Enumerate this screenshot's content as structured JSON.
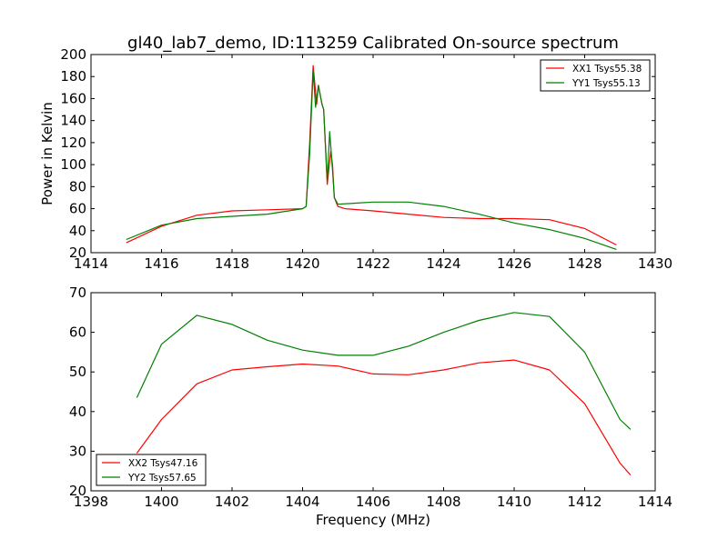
{
  "chart_data": [
    {
      "type": "line",
      "title": "gl40_lab7_demo, ID:113259 Calibrated On-source spectrum",
      "xlabel": "",
      "ylabel": "Power in Kelvin",
      "xlim": [
        1414,
        1430
      ],
      "ylim": [
        20,
        200
      ],
      "xticks": [
        1414,
        1416,
        1418,
        1420,
        1422,
        1424,
        1426,
        1428,
        1430
      ],
      "yticks": [
        20,
        40,
        60,
        80,
        100,
        120,
        140,
        160,
        180,
        200
      ],
      "legend": "top-right",
      "series": [
        {
          "name": "XX1 Tsys55.38",
          "color": "#ff0000",
          "x": [
            1415,
            1416,
            1417,
            1418,
            1419,
            1420,
            1420.1,
            1420.2,
            1420.3,
            1420.4,
            1420.45,
            1420.55,
            1420.6,
            1420.7,
            1420.8,
            1420.85,
            1420.9,
            1421,
            1421.2,
            1422,
            1423,
            1424,
            1425,
            1426,
            1427,
            1428,
            1428.9
          ],
          "y": [
            29,
            44,
            54,
            58,
            59,
            60,
            62,
            120,
            190,
            155,
            172,
            155,
            150,
            82,
            112,
            100,
            70,
            62,
            60,
            58,
            55,
            52,
            51,
            51,
            50,
            42,
            27
          ]
        },
        {
          "name": "YY1 Tsys55.13",
          "color": "#008000",
          "x": [
            1415,
            1416,
            1417,
            1418,
            1419,
            1420,
            1420.1,
            1420.2,
            1420.3,
            1420.37,
            1420.45,
            1420.55,
            1420.6,
            1420.7,
            1420.77,
            1420.85,
            1420.9,
            1421,
            1421.5,
            1422,
            1423,
            1424,
            1425,
            1426,
            1427,
            1428,
            1428.9
          ],
          "y": [
            32,
            45,
            51,
            53,
            55,
            60,
            62,
            110,
            185,
            152,
            172,
            155,
            150,
            85,
            130,
            95,
            70,
            64,
            65,
            66,
            66,
            62,
            55,
            47,
            41,
            33,
            23
          ]
        }
      ]
    },
    {
      "type": "line",
      "title": "",
      "xlabel": "Frequency (MHz)",
      "ylabel": "",
      "xlim": [
        1398,
        1414
      ],
      "ylim": [
        20,
        70
      ],
      "xticks": [
        1398,
        1400,
        1402,
        1404,
        1406,
        1408,
        1410,
        1412,
        1414
      ],
      "yticks": [
        20,
        30,
        40,
        50,
        60,
        70
      ],
      "legend": "bottom-left",
      "series": [
        {
          "name": "XX2 Tsys47.16",
          "color": "#ff0000",
          "x": [
            1399.3,
            1400,
            1401,
            1402,
            1403,
            1404,
            1405,
            1406,
            1407,
            1408,
            1409,
            1410,
            1411,
            1412,
            1413,
            1413.3
          ],
          "y": [
            29.5,
            38,
            47,
            50.5,
            51.3,
            52,
            51.5,
            49.5,
            49.3,
            50.5,
            52.3,
            53,
            50.5,
            42,
            27,
            24
          ]
        },
        {
          "name": "YY2 Tsys57.65",
          "color": "#008000",
          "x": [
            1399.3,
            1400,
            1401,
            1402,
            1403,
            1404,
            1405,
            1406,
            1407,
            1408,
            1409,
            1410,
            1411,
            1412,
            1413,
            1413.3
          ],
          "y": [
            43.5,
            57,
            64.3,
            62,
            58,
            55.5,
            54.2,
            54.2,
            56.5,
            60,
            63,
            65,
            64,
            55,
            38,
            35.5
          ]
        }
      ]
    }
  ]
}
